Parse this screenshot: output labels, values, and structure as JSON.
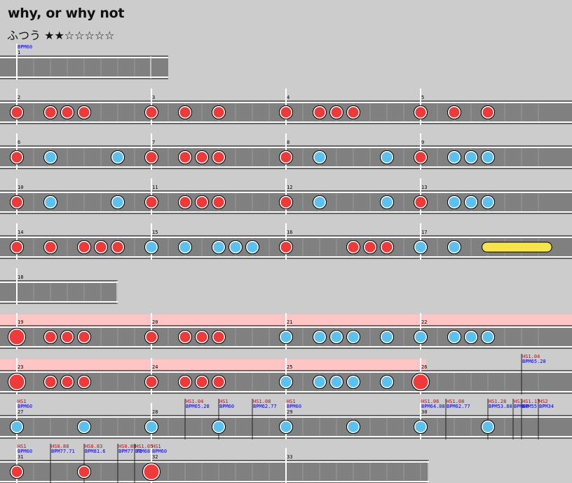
{
  "song": {
    "title": "why, or why not",
    "difficulty_label": "ふつう",
    "stars_filled": 2,
    "stars_total": 7,
    "stars_text": "★★☆☆☆☆☆"
  },
  "colors": {
    "background": "#cccccc",
    "lane": "#808080",
    "don": "#f03a3a",
    "ka": "#5ac1f0",
    "roll": "#f7e44a",
    "gogo": "#ffc4c4",
    "measure_number": "#000000",
    "scroll_label": "#dd0000",
    "bpm_label": "#0000cc"
  },
  "rows": [
    {
      "measures": [
        {
          "number": "1",
          "beats": 16,
          "notes": [],
          "events": [
            {
              "scroll": "",
              "bpm": "BPM60"
            }
          ]
        }
      ]
    },
    {
      "measures": [
        {
          "number": "2",
          "beats": 16,
          "notes": [
            [
              0,
              "don"
            ],
            [
              4,
              "don"
            ],
            [
              6,
              "don"
            ],
            [
              8,
              "don"
            ]
          ]
        },
        {
          "number": "3",
          "beats": 16,
          "notes": [
            [
              0,
              "don"
            ],
            [
              4,
              "don"
            ],
            [
              8,
              "don"
            ]
          ]
        },
        {
          "number": "4",
          "beats": 16,
          "notes": [
            [
              0,
              "don"
            ],
            [
              4,
              "don"
            ],
            [
              6,
              "don"
            ],
            [
              8,
              "don"
            ]
          ]
        },
        {
          "number": "5",
          "beats": 16,
          "notes": [
            [
              0,
              "don"
            ],
            [
              4,
              "don"
            ],
            [
              8,
              "don"
            ]
          ]
        }
      ]
    },
    {
      "measures": [
        {
          "number": "6",
          "beats": 16,
          "notes": [
            [
              0,
              "don"
            ],
            [
              4,
              "ka"
            ],
            [
              12,
              "ka"
            ]
          ]
        },
        {
          "number": "7",
          "beats": 16,
          "notes": [
            [
              0,
              "don"
            ],
            [
              4,
              "don"
            ],
            [
              6,
              "don"
            ],
            [
              8,
              "don"
            ]
          ]
        },
        {
          "number": "8",
          "beats": 16,
          "notes": [
            [
              0,
              "don"
            ],
            [
              4,
              "ka"
            ],
            [
              12,
              "ka"
            ]
          ]
        },
        {
          "number": "9",
          "beats": 16,
          "notes": [
            [
              0,
              "don"
            ],
            [
              4,
              "ka"
            ],
            [
              6,
              "ka"
            ],
            [
              8,
              "ka"
            ]
          ]
        }
      ]
    },
    {
      "measures": [
        {
          "number": "10",
          "beats": 16,
          "notes": [
            [
              0,
              "don"
            ],
            [
              4,
              "ka"
            ],
            [
              12,
              "ka"
            ]
          ]
        },
        {
          "number": "11",
          "beats": 16,
          "notes": [
            [
              0,
              "don"
            ],
            [
              4,
              "don"
            ],
            [
              6,
              "don"
            ],
            [
              8,
              "don"
            ]
          ]
        },
        {
          "number": "12",
          "beats": 16,
          "notes": [
            [
              0,
              "don"
            ],
            [
              4,
              "ka"
            ],
            [
              12,
              "ka"
            ]
          ]
        },
        {
          "number": "13",
          "beats": 16,
          "notes": [
            [
              0,
              "don"
            ],
            [
              4,
              "ka"
            ],
            [
              6,
              "ka"
            ],
            [
              8,
              "ka"
            ]
          ]
        }
      ]
    },
    {
      "measures": [
        {
          "number": "14",
          "beats": 16,
          "notes": [
            [
              0,
              "don"
            ],
            [
              4,
              "don"
            ],
            [
              8,
              "don"
            ],
            [
              10,
              "don"
            ],
            [
              12,
              "don"
            ]
          ]
        },
        {
          "number": "15",
          "beats": 16,
          "notes": [
            [
              0,
              "ka"
            ],
            [
              4,
              "ka"
            ],
            [
              8,
              "ka"
            ],
            [
              10,
              "ka"
            ],
            [
              12,
              "ka"
            ]
          ]
        },
        {
          "number": "16",
          "beats": 16,
          "notes": [
            [
              0,
              "don"
            ],
            [
              8,
              "don"
            ],
            [
              10,
              "don"
            ],
            [
              12,
              "don"
            ]
          ]
        },
        {
          "number": "17",
          "beats": 16,
          "notes": [
            [
              0,
              "ka"
            ],
            [
              4,
              "ka"
            ]
          ],
          "roll": [
            7.3,
            15.6
          ]
        }
      ]
    },
    {
      "measures": [
        {
          "number": "18",
          "beats": 12,
          "notes": []
        }
      ]
    },
    {
      "gogo": true,
      "measures": [
        {
          "number": "19",
          "beats": 16,
          "notes": [
            [
              0,
              "bigdon"
            ],
            [
              4,
              "don"
            ],
            [
              6,
              "don"
            ],
            [
              8,
              "don"
            ]
          ]
        },
        {
          "number": "20",
          "beats": 16,
          "notes": [
            [
              0,
              "don"
            ],
            [
              4,
              "don"
            ],
            [
              6,
              "don"
            ],
            [
              8,
              "don"
            ]
          ]
        },
        {
          "number": "21",
          "beats": 16,
          "notes": [
            [
              0,
              "ka"
            ],
            [
              4,
              "ka"
            ],
            [
              6,
              "ka"
            ],
            [
              8,
              "ka"
            ],
            [
              12,
              "ka"
            ]
          ]
        },
        {
          "number": "22",
          "beats": 16,
          "notes": [
            [
              0,
              "ka"
            ],
            [
              4,
              "ka"
            ],
            [
              6,
              "ka"
            ],
            [
              8,
              "ka"
            ]
          ]
        }
      ]
    },
    {
      "gogo": true,
      "gogo_end": 608,
      "measures": [
        {
          "number": "23",
          "beats": 16,
          "notes": [
            [
              0,
              "bigdon"
            ],
            [
              4,
              "don"
            ],
            [
              6,
              "don"
            ],
            [
              8,
              "don"
            ]
          ]
        },
        {
          "number": "24",
          "beats": 16,
          "notes": [
            [
              0,
              "don"
            ],
            [
              4,
              "don"
            ],
            [
              6,
              "don"
            ],
            [
              8,
              "don"
            ]
          ]
        },
        {
          "number": "25",
          "beats": 16,
          "notes": [
            [
              0,
              "ka"
            ],
            [
              4,
              "ka"
            ],
            [
              6,
              "ka"
            ],
            [
              8,
              "ka"
            ],
            [
              12,
              "ka"
            ]
          ]
        },
        {
          "number": "26",
          "beats": 16,
          "notes": [
            [
              0,
              "bigdon"
            ]
          ],
          "events": [
            {
              "beat": 12,
              "scroll": "HS1.04",
              "bpm": "BPM65.28"
            }
          ]
        }
      ]
    },
    {
      "measures": [
        {
          "number": "27",
          "beats": 16,
          "notes": [
            [
              0,
              "ka"
            ],
            [
              8,
              "ka"
            ]
          ],
          "events": [
            {
              "beat": 0,
              "scroll": "HS1",
              "bpm": "BPM60"
            }
          ]
        },
        {
          "number": "28",
          "beats": 16,
          "notes": [
            [
              0,
              "ka"
            ],
            [
              8,
              "ka"
            ]
          ],
          "events": [
            {
              "beat": 4,
              "scroll": "HS1.04",
              "bpm": "BPM65.28"
            },
            {
              "beat": 8,
              "scroll": "HS1",
              "bpm": "BPM60"
            },
            {
              "beat": 12,
              "scroll": "HS1.08",
              "bpm": "BPM62.77"
            }
          ]
        },
        {
          "number": "29",
          "beats": 16,
          "notes": [
            [
              0,
              "ka"
            ],
            [
              8,
              "ka"
            ]
          ],
          "events": [
            {
              "beat": 0,
              "scroll": "HS1",
              "bpm": "BPM60"
            }
          ]
        },
        {
          "number": "30",
          "beats": 16,
          "notes": [
            [
              0,
              "ka"
            ],
            [
              8,
              "ka"
            ]
          ],
          "events": [
            {
              "beat": 0,
              "scroll": "HS1.06",
              "bpm": "BPM64.08"
            },
            {
              "beat": 3,
              "scroll": "HS1.08",
              "bpm": "BPM62.77"
            },
            {
              "beat": 8,
              "scroll": "HS1.28",
              "bpm": "BPM53.88"
            },
            {
              "beat": 11,
              "scroll": "HS1",
              "bpm": "BPM60"
            },
            {
              "beat": 12,
              "scroll": "HS1.17",
              "bpm": "BPM55"
            },
            {
              "beat": 14,
              "scroll": "HS2",
              "bpm": "BPM34"
            }
          ]
        }
      ]
    },
    {
      "measures": [
        {
          "number": "31",
          "beats": 16,
          "notes": [
            [
              0,
              "don"
            ],
            [
              8,
              "don"
            ]
          ],
          "events": [
            {
              "beat": 0,
              "scroll": "HS1",
              "bpm": "BPM60"
            },
            {
              "beat": 4,
              "scroll": "HS0.88",
              "bpm": "BPM77.71"
            },
            {
              "beat": 8,
              "scroll": "HS0.83",
              "bpm": "BPM81.6"
            },
            {
              "beat": 12,
              "scroll": "HS0.88",
              "bpm": "BPM77.71"
            },
            {
              "beat": 14,
              "scroll": "HS1.05",
              "bpm": "BPM68"
            }
          ]
        },
        {
          "number": "32",
          "beats": 16,
          "notes": [
            [
              0,
              "bigdon"
            ]
          ],
          "events": [
            {
              "beat": 0,
              "scroll": "HS1",
              "bpm": "BPM60"
            }
          ]
        },
        {
          "number": "33",
          "beats": 17,
          "notes": []
        }
      ]
    }
  ]
}
